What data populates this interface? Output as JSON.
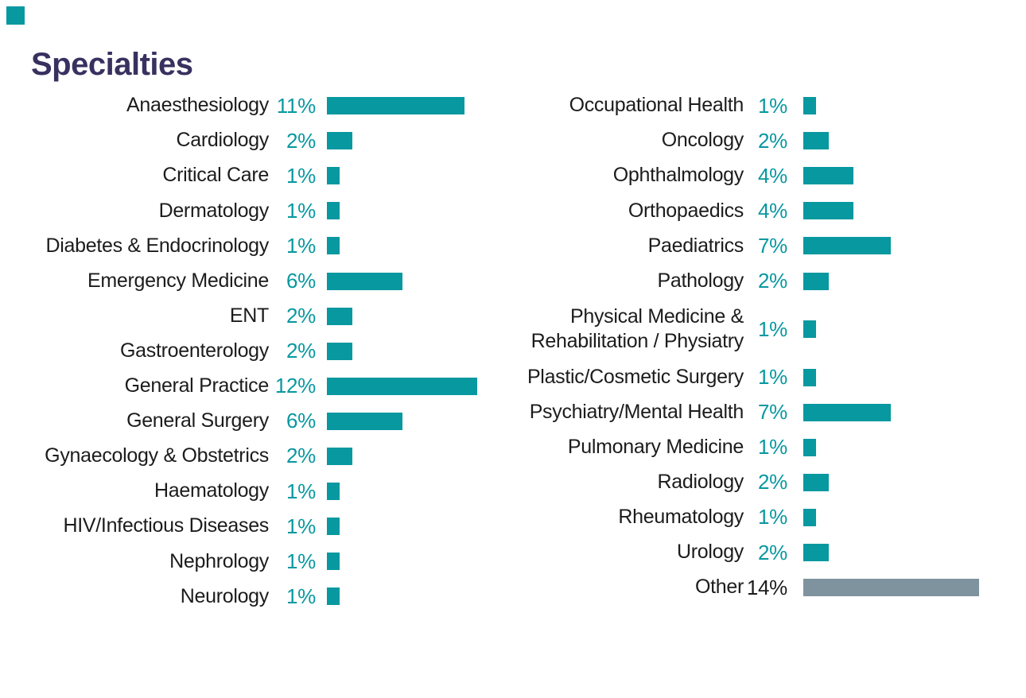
{
  "title": "Specialties",
  "colors": {
    "accent": "#0798A0",
    "other_bar": "#7E939E",
    "title_text": "#38315F",
    "label_text": "#1C1C1C"
  },
  "chart_data": {
    "type": "bar",
    "orientation": "horizontal",
    "title": "Specialties",
    "unit": "%",
    "value_range": [
      0,
      14
    ],
    "columns": [
      {
        "items": [
          {
            "label": "Anaesthesiology",
            "value": 11,
            "display": "11%"
          },
          {
            "label": "Cardiology",
            "value": 2,
            "display": "2%"
          },
          {
            "label": "Critical Care",
            "value": 1,
            "display": "1%"
          },
          {
            "label": "Dermatology",
            "value": 1,
            "display": "1%"
          },
          {
            "label": "Diabetes & Endocrinology",
            "value": 1,
            "display": "1%"
          },
          {
            "label": "Emergency Medicine",
            "value": 6,
            "display": "6%"
          },
          {
            "label": "ENT",
            "value": 2,
            "display": "2%"
          },
          {
            "label": "Gastroenterology",
            "value": 2,
            "display": "2%"
          },
          {
            "label": "General Practice",
            "value": 12,
            "display": "12%"
          },
          {
            "label": "General Surgery",
            "value": 6,
            "display": "6%"
          },
          {
            "label": "Gynaecology & Obstetrics",
            "value": 2,
            "display": "2%"
          },
          {
            "label": "Haematology",
            "value": 1,
            "display": "1%"
          },
          {
            "label": "HIV/Infectious Diseases",
            "value": 1,
            "display": "1%"
          },
          {
            "label": "Nephrology",
            "value": 1,
            "display": "1%"
          },
          {
            "label": "Neurology",
            "value": 1,
            "display": "1%"
          }
        ]
      },
      {
        "items": [
          {
            "label": "Occupational Health",
            "value": 1,
            "display": "1%"
          },
          {
            "label": "Oncology",
            "value": 2,
            "display": "2%"
          },
          {
            "label": "Ophthalmology",
            "value": 4,
            "display": "4%"
          },
          {
            "label": "Orthopaedics",
            "value": 4,
            "display": "4%"
          },
          {
            "label": "Paediatrics",
            "value": 7,
            "display": "7%"
          },
          {
            "label": "Pathology",
            "value": 2,
            "display": "2%"
          },
          {
            "label": "Physical Medicine &\nRehabilitation / Physiatry",
            "value": 1,
            "display": "1%"
          },
          {
            "label": "Plastic/Cosmetic Surgery",
            "value": 1,
            "display": "1%"
          },
          {
            "label": "Psychiatry/Mental Health",
            "value": 7,
            "display": "7%"
          },
          {
            "label": "Pulmonary Medicine",
            "value": 1,
            "display": "1%"
          },
          {
            "label": "Radiology",
            "value": 2,
            "display": "2%"
          },
          {
            "label": "Rheumatology",
            "value": 1,
            "display": "1%"
          },
          {
            "label": "Urology",
            "value": 2,
            "display": "2%"
          },
          {
            "label": "Other",
            "value": 14,
            "display": "14%",
            "muted": true
          }
        ]
      }
    ]
  }
}
